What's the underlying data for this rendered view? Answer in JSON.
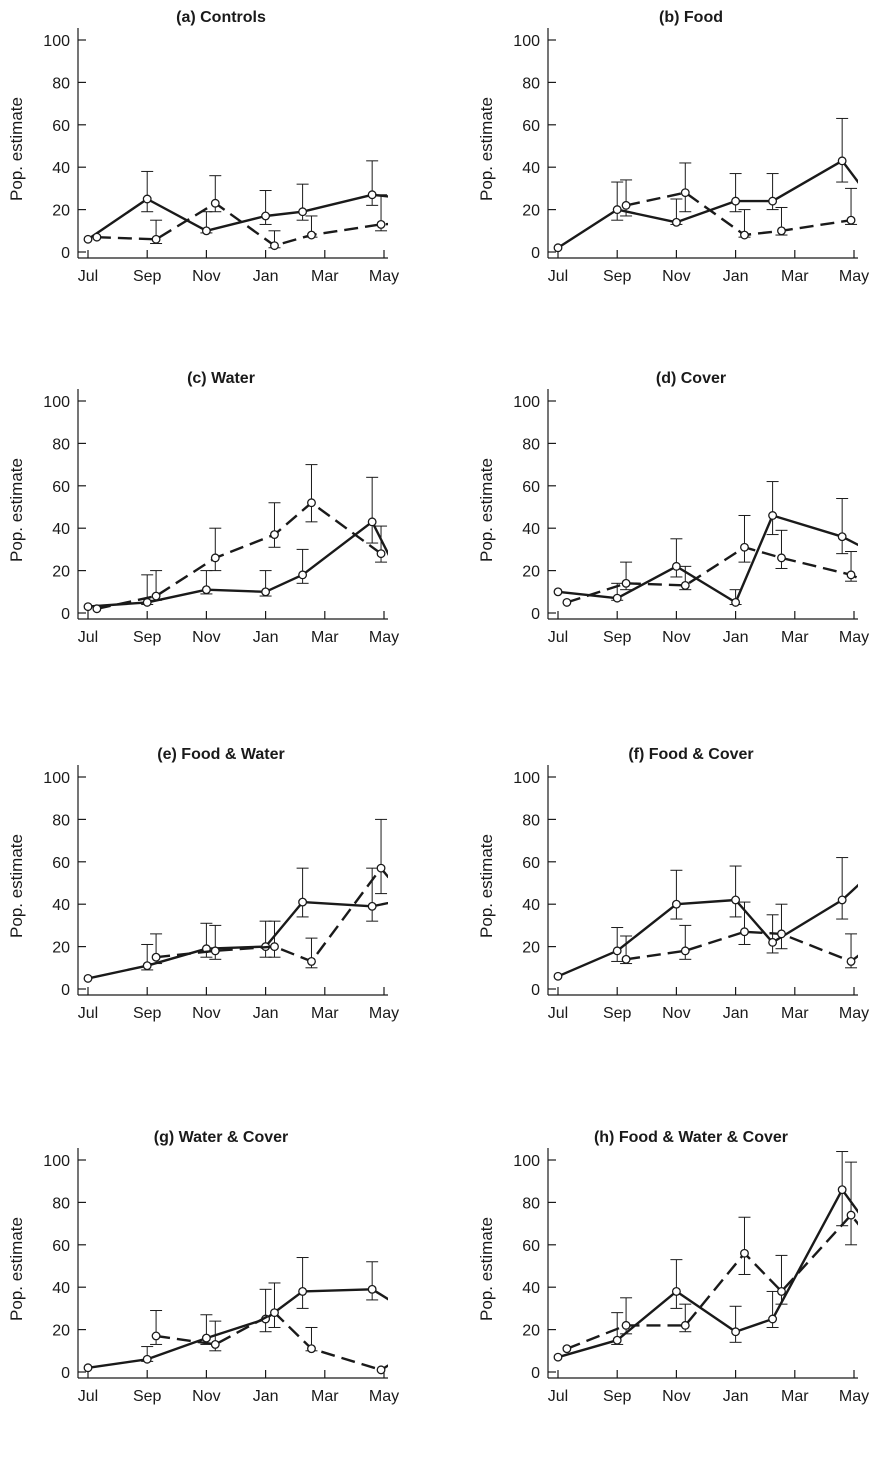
{
  "colors": {
    "ink": "#1a1a1a",
    "background": "#ffffff"
  },
  "chart_data": [
    {
      "type": "line",
      "title": "(a) Controls",
      "xlabel": "",
      "ylabel": "Pop. estimate",
      "xticks": [
        "Jul",
        "Sep",
        "Nov",
        "Jan",
        "Mar",
        "May"
      ],
      "yticks": [
        0,
        20,
        40,
        60,
        80,
        100
      ],
      "ylim": [
        0,
        100
      ],
      "series": [
        {
          "style": "solid",
          "points": [
            {
              "x": "Jul",
              "y": 6,
              "lo": null,
              "hi": null
            },
            {
              "x": "Sep",
              "y": 25,
              "lo": 19,
              "hi": 38
            },
            {
              "x": "Nov",
              "y": 10,
              "lo": 9,
              "hi": 19
            },
            {
              "x": "Jan",
              "y": 17,
              "lo": 13,
              "hi": 29
            },
            {
              "x": "Feb",
              "y": 19,
              "lo": 15,
              "hi": 32
            },
            {
              "x": "Apr",
              "y": 27,
              "lo": 22,
              "hi": 43
            },
            {
              "x": "Jun",
              "y": 25,
              "lo": 18,
              "hi": 42
            }
          ]
        },
        {
          "style": "dashed",
          "points": [
            {
              "x": "Jul",
              "y": 7,
              "lo": null,
              "hi": null
            },
            {
              "x": "Sep",
              "y": 6,
              "lo": 4,
              "hi": 15
            },
            {
              "x": "Nov",
              "y": 23,
              "lo": 19,
              "hi": 36
            },
            {
              "x": "Jan",
              "y": 3,
              "lo": 2,
              "hi": 10
            },
            {
              "x": "Feb",
              "y": 8,
              "lo": 7,
              "hi": 17
            },
            {
              "x": "Apr",
              "y": 13,
              "lo": 10,
              "hi": 27
            },
            {
              "x": "Jun",
              "y": 14,
              "lo": 10,
              "hi": 39
            }
          ]
        }
      ]
    },
    {
      "type": "line",
      "title": "(b) Food",
      "xlabel": "",
      "ylabel": "Pop. estimate",
      "xticks": [
        "Jul",
        "Sep",
        "Nov",
        "Jan",
        "Mar",
        "May"
      ],
      "yticks": [
        0,
        20,
        40,
        60,
        80,
        100
      ],
      "ylim": [
        0,
        100
      ],
      "series": [
        {
          "style": "solid",
          "points": [
            {
              "x": "Jul",
              "y": 2,
              "lo": null,
              "hi": null
            },
            {
              "x": "Sep",
              "y": 20,
              "lo": 15,
              "hi": 33
            },
            {
              "x": "Nov",
              "y": 14,
              "lo": 13,
              "hi": 25
            },
            {
              "x": "Jan",
              "y": 24,
              "lo": 19,
              "hi": 37
            },
            {
              "x": "Feb",
              "y": 24,
              "lo": 20,
              "hi": 37
            },
            {
              "x": "Apr",
              "y": 43,
              "lo": 33,
              "hi": 63
            },
            {
              "x": "Jun",
              "y": 17,
              "lo": 12,
              "hi": 31
            }
          ]
        },
        {
          "style": "dashed",
          "points": [
            {
              "x": "Sep",
              "y": 22,
              "lo": 17,
              "hi": 34
            },
            {
              "x": "Nov",
              "y": 28,
              "lo": 19,
              "hi": 42
            },
            {
              "x": "Jan",
              "y": 8,
              "lo": 7,
              "hi": 20
            },
            {
              "x": "Feb",
              "y": 10,
              "lo": 8,
              "hi": 21
            },
            {
              "x": "Apr",
              "y": 15,
              "lo": 13,
              "hi": 30
            },
            {
              "x": "Jun",
              "y": 30,
              "lo": 25,
              "hi": 48
            }
          ]
        }
      ]
    },
    {
      "type": "line",
      "title": "(c) Water",
      "xlabel": "",
      "ylabel": "Pop. estimate",
      "xticks": [
        "Jul",
        "Sep",
        "Nov",
        "Jan",
        "Mar",
        "May"
      ],
      "yticks": [
        0,
        20,
        40,
        60,
        80,
        100
      ],
      "ylim": [
        0,
        100
      ],
      "series": [
        {
          "style": "solid",
          "points": [
            {
              "x": "Jul",
              "y": 3,
              "lo": null,
              "hi": null
            },
            {
              "x": "Sep",
              "y": 5,
              "lo": 4,
              "hi": 18
            },
            {
              "x": "Nov",
              "y": 11,
              "lo": 9,
              "hi": 20
            },
            {
              "x": "Jan",
              "y": 10,
              "lo": 8,
              "hi": 20
            },
            {
              "x": "Feb",
              "y": 18,
              "lo": 14,
              "hi": 30
            },
            {
              "x": "Apr",
              "y": 43,
              "lo": 33,
              "hi": 64
            },
            {
              "x": "Jun",
              "y": 4,
              "lo": null,
              "hi": 18
            }
          ]
        },
        {
          "style": "dashed",
          "points": [
            {
              "x": "Jul",
              "y": 2,
              "lo": null,
              "hi": null
            },
            {
              "x": "Sep",
              "y": 8,
              "lo": 6,
              "hi": 20
            },
            {
              "x": "Nov",
              "y": 26,
              "lo": 20,
              "hi": 40
            },
            {
              "x": "Jan",
              "y": 37,
              "lo": 31,
              "hi": 52
            },
            {
              "x": "Feb",
              "y": 52,
              "lo": 43,
              "hi": 70
            },
            {
              "x": "Apr",
              "y": 28,
              "lo": 24,
              "hi": 41
            },
            {
              "x": "Jun",
              "y": 28,
              "lo": 20,
              "hi": 45
            }
          ]
        }
      ]
    },
    {
      "type": "line",
      "title": "(d) Cover",
      "xlabel": "",
      "ylabel": "Pop. estimate",
      "xticks": [
        "Jul",
        "Sep",
        "Nov",
        "Jan",
        "Mar",
        "May"
      ],
      "yticks": [
        0,
        20,
        40,
        60,
        80,
        100
      ],
      "ylim": [
        0,
        100
      ],
      "series": [
        {
          "style": "solid",
          "points": [
            {
              "x": "Jul",
              "y": 10,
              "lo": null,
              "hi": null
            },
            {
              "x": "Sep",
              "y": 7,
              "lo": 6,
              "hi": 14
            },
            {
              "x": "Nov",
              "y": 22,
              "lo": 17,
              "hi": 35
            },
            {
              "x": "Jan",
              "y": 5,
              "lo": 4,
              "hi": 11
            },
            {
              "x": "Feb",
              "y": 46,
              "lo": 37,
              "hi": 62
            },
            {
              "x": "Apr",
              "y": 36,
              "lo": 28,
              "hi": 54
            },
            {
              "x": "Jun",
              "y": 26,
              "lo": 19,
              "hi": 43
            }
          ]
        },
        {
          "style": "dashed",
          "points": [
            {
              "x": "Jul",
              "y": 5,
              "lo": null,
              "hi": null
            },
            {
              "x": "Sep",
              "y": 14,
              "lo": 11,
              "hi": 24
            },
            {
              "x": "Nov",
              "y": 13,
              "lo": 11,
              "hi": 22
            },
            {
              "x": "Jan",
              "y": 31,
              "lo": 24,
              "hi": 46
            },
            {
              "x": "Feb",
              "y": 26,
              "lo": 21,
              "hi": 39
            },
            {
              "x": "Apr",
              "y": 18,
              "lo": 15,
              "hi": 29
            },
            {
              "x": "Jun",
              "y": 9,
              "lo": null,
              "hi": null
            }
          ]
        }
      ]
    },
    {
      "type": "line",
      "title": "(e) Food & Water",
      "xlabel": "",
      "ylabel": "Pop. estimate",
      "xticks": [
        "Jul",
        "Sep",
        "Nov",
        "Jan",
        "Mar",
        "May"
      ],
      "yticks": [
        0,
        20,
        40,
        60,
        80,
        100
      ],
      "ylim": [
        0,
        100
      ],
      "series": [
        {
          "style": "solid",
          "points": [
            {
              "x": "Jul",
              "y": 5,
              "lo": null,
              "hi": null
            },
            {
              "x": "Sep",
              "y": 11,
              "lo": 9,
              "hi": 21
            },
            {
              "x": "Nov",
              "y": 19,
              "lo": 15,
              "hi": 31
            },
            {
              "x": "Jan",
              "y": 20,
              "lo": 15,
              "hi": 32
            },
            {
              "x": "Feb",
              "y": 41,
              "lo": 34,
              "hi": 57
            },
            {
              "x": "Apr",
              "y": 39,
              "lo": 32,
              "hi": 57
            },
            {
              "x": "Jun",
              "y": 43,
              "lo": 33,
              "hi": 64
            }
          ]
        },
        {
          "style": "dashed",
          "points": [
            {
              "x": "Sep",
              "y": 15,
              "lo": 12,
              "hi": 26
            },
            {
              "x": "Nov",
              "y": 18,
              "lo": 14,
              "hi": 30
            },
            {
              "x": "Jan",
              "y": 20,
              "lo": 15,
              "hi": 32
            },
            {
              "x": "Feb",
              "y": 13,
              "lo": 10,
              "hi": 24
            },
            {
              "x": "Apr",
              "y": 57,
              "lo": 45,
              "hi": 80
            },
            {
              "x": "Jun",
              "y": 33,
              "lo": 25,
              "hi": 52
            }
          ]
        }
      ]
    },
    {
      "type": "line",
      "title": "(f) Food & Cover",
      "xlabel": "",
      "ylabel": "Pop. estimate",
      "xticks": [
        "Jul",
        "Sep",
        "Nov",
        "Jan",
        "Mar",
        "May"
      ],
      "yticks": [
        0,
        20,
        40,
        60,
        80,
        100
      ],
      "ylim": [
        0,
        100
      ],
      "series": [
        {
          "style": "solid",
          "points": [
            {
              "x": "Jul",
              "y": 6,
              "lo": null,
              "hi": null
            },
            {
              "x": "Sep",
              "y": 18,
              "lo": 13,
              "hi": 29
            },
            {
              "x": "Nov",
              "y": 40,
              "lo": 33,
              "hi": 56
            },
            {
              "x": "Jan",
              "y": 42,
              "lo": 34,
              "hi": 58
            },
            {
              "x": "Feb",
              "y": 22,
              "lo": 17,
              "hi": 35
            },
            {
              "x": "Apr",
              "y": 42,
              "lo": 33,
              "hi": 62
            },
            {
              "x": "Jun",
              "y": 60,
              "lo": 47,
              "hi": 83
            }
          ]
        },
        {
          "style": "dashed",
          "points": [
            {
              "x": "Sep",
              "y": 14,
              "lo": 12,
              "hi": 25
            },
            {
              "x": "Nov",
              "y": 18,
              "lo": 14,
              "hi": 30
            },
            {
              "x": "Jan",
              "y": 27,
              "lo": 21,
              "hi": 41
            },
            {
              "x": "Feb",
              "y": 26,
              "lo": 19,
              "hi": 40
            },
            {
              "x": "Apr",
              "y": 13,
              "lo": 10,
              "hi": 26
            },
            {
              "x": "Jun",
              "y": 28,
              "lo": 22,
              "hi": 46
            }
          ]
        }
      ]
    },
    {
      "type": "line",
      "title": "(g) Water & Cover",
      "xlabel": "",
      "ylabel": "Pop. estimate",
      "xticks": [
        "Jul",
        "Sep",
        "Nov",
        "Jan",
        "Mar",
        "May"
      ],
      "yticks": [
        0,
        20,
        40,
        60,
        80,
        100
      ],
      "ylim": [
        0,
        100
      ],
      "series": [
        {
          "style": "solid",
          "points": [
            {
              "x": "Jul",
              "y": 2,
              "lo": null,
              "hi": null
            },
            {
              "x": "Sep",
              "y": 6,
              "lo": 5,
              "hi": 12
            },
            {
              "x": "Nov",
              "y": 16,
              "lo": 13,
              "hi": 27
            },
            {
              "x": "Jan",
              "y": 25,
              "lo": 19,
              "hi": 39
            },
            {
              "x": "Feb",
              "y": 38,
              "lo": 30,
              "hi": 54
            },
            {
              "x": "Apr",
              "y": 39,
              "lo": 34,
              "hi": 52
            },
            {
              "x": "Jun",
              "y": 27,
              "lo": 21,
              "hi": 44
            }
          ]
        },
        {
          "style": "dashed",
          "points": [
            {
              "x": "Sep",
              "y": 17,
              "lo": 13,
              "hi": 29
            },
            {
              "x": "Nov",
              "y": 13,
              "lo": 10,
              "hi": 24
            },
            {
              "x": "Jan",
              "y": 28,
              "lo": 21,
              "hi": 42
            },
            {
              "x": "Feb",
              "y": 11,
              "lo": 10,
              "hi": 21
            },
            {
              "x": "Apr",
              "y": 1,
              "lo": null,
              "hi": null
            },
            {
              "x": "Jun",
              "y": 13,
              "lo": 10,
              "hi": 25
            }
          ]
        }
      ]
    },
    {
      "type": "line",
      "title": "(h) Food & Water & Cover",
      "xlabel": "",
      "ylabel": "Pop. estimate",
      "xticks": [
        "Jul",
        "Sep",
        "Nov",
        "Jan",
        "Mar",
        "May"
      ],
      "yticks": [
        0,
        20,
        40,
        60,
        80,
        100
      ],
      "ylim": [
        0,
        100
      ],
      "series": [
        {
          "style": "solid",
          "points": [
            {
              "x": "Jul",
              "y": 7,
              "lo": null,
              "hi": null
            },
            {
              "x": "Sep",
              "y": 15,
              "lo": 13,
              "hi": 28
            },
            {
              "x": "Nov",
              "y": 38,
              "lo": 30,
              "hi": 53
            },
            {
              "x": "Jan",
              "y": 19,
              "lo": 14,
              "hi": 31
            },
            {
              "x": "Feb",
              "y": 25,
              "lo": 21,
              "hi": 38
            },
            {
              "x": "Apr",
              "y": 86,
              "lo": 69,
              "hi": 104
            },
            {
              "x": "Jun",
              "y": 59,
              "lo": 47,
              "hi": 82
            }
          ]
        },
        {
          "style": "dashed",
          "points": [
            {
              "x": "Jul",
              "y": 11,
              "lo": null,
              "hi": null
            },
            {
              "x": "Sep",
              "y": 22,
              "lo": 18,
              "hi": 35
            },
            {
              "x": "Nov",
              "y": 22,
              "lo": 19,
              "hi": 32
            },
            {
              "x": "Jan",
              "y": 56,
              "lo": 46,
              "hi": 73
            },
            {
              "x": "Feb",
              "y": 38,
              "lo": 32,
              "hi": 55
            },
            {
              "x": "Apr",
              "y": 74,
              "lo": 60,
              "hi": 99
            },
            {
              "x": "Jun",
              "y": 50,
              "lo": 39,
              "hi": 72
            }
          ]
        }
      ]
    }
  ]
}
